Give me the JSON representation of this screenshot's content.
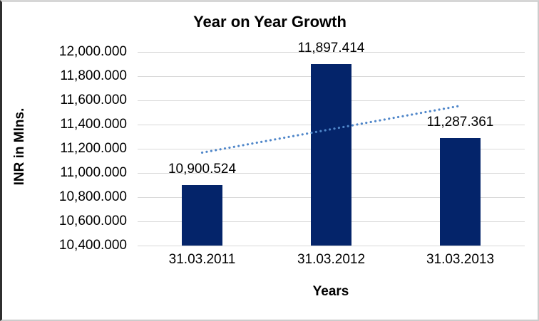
{
  "frame": {
    "background": "#ffffff",
    "border_left_color": "#2f2f2f",
    "border_other_color": "#d0d0d0"
  },
  "chart_data": {
    "type": "bar",
    "title": "Year on Year Growth",
    "xlabel": "Years",
    "ylabel": "INR in Mlns.",
    "categories": [
      "31.03.2011",
      "31.03.2012",
      "31.03.2013"
    ],
    "values": [
      10900.524,
      11897.414,
      11287.361
    ],
    "data_labels": [
      "10,900.524",
      "11,897.414",
      "11,287.361"
    ],
    "y_ticks": [
      "12,000.000",
      "11,800.000",
      "11,600.000",
      "11,400.000",
      "11,200.000",
      "11,000.000",
      "10,800.000",
      "10,600.000",
      "10,400.000"
    ],
    "ylim": [
      10400,
      12000
    ],
    "grid": true,
    "gridline_color": "#d9d9d9",
    "bar_color": "#04246a",
    "text_color": "#000000",
    "legend": "none",
    "trendline": {
      "type": "linear",
      "style": "dotted",
      "color": "#4f86c9",
      "start_value": 11168,
      "end_value": 11555
    }
  }
}
